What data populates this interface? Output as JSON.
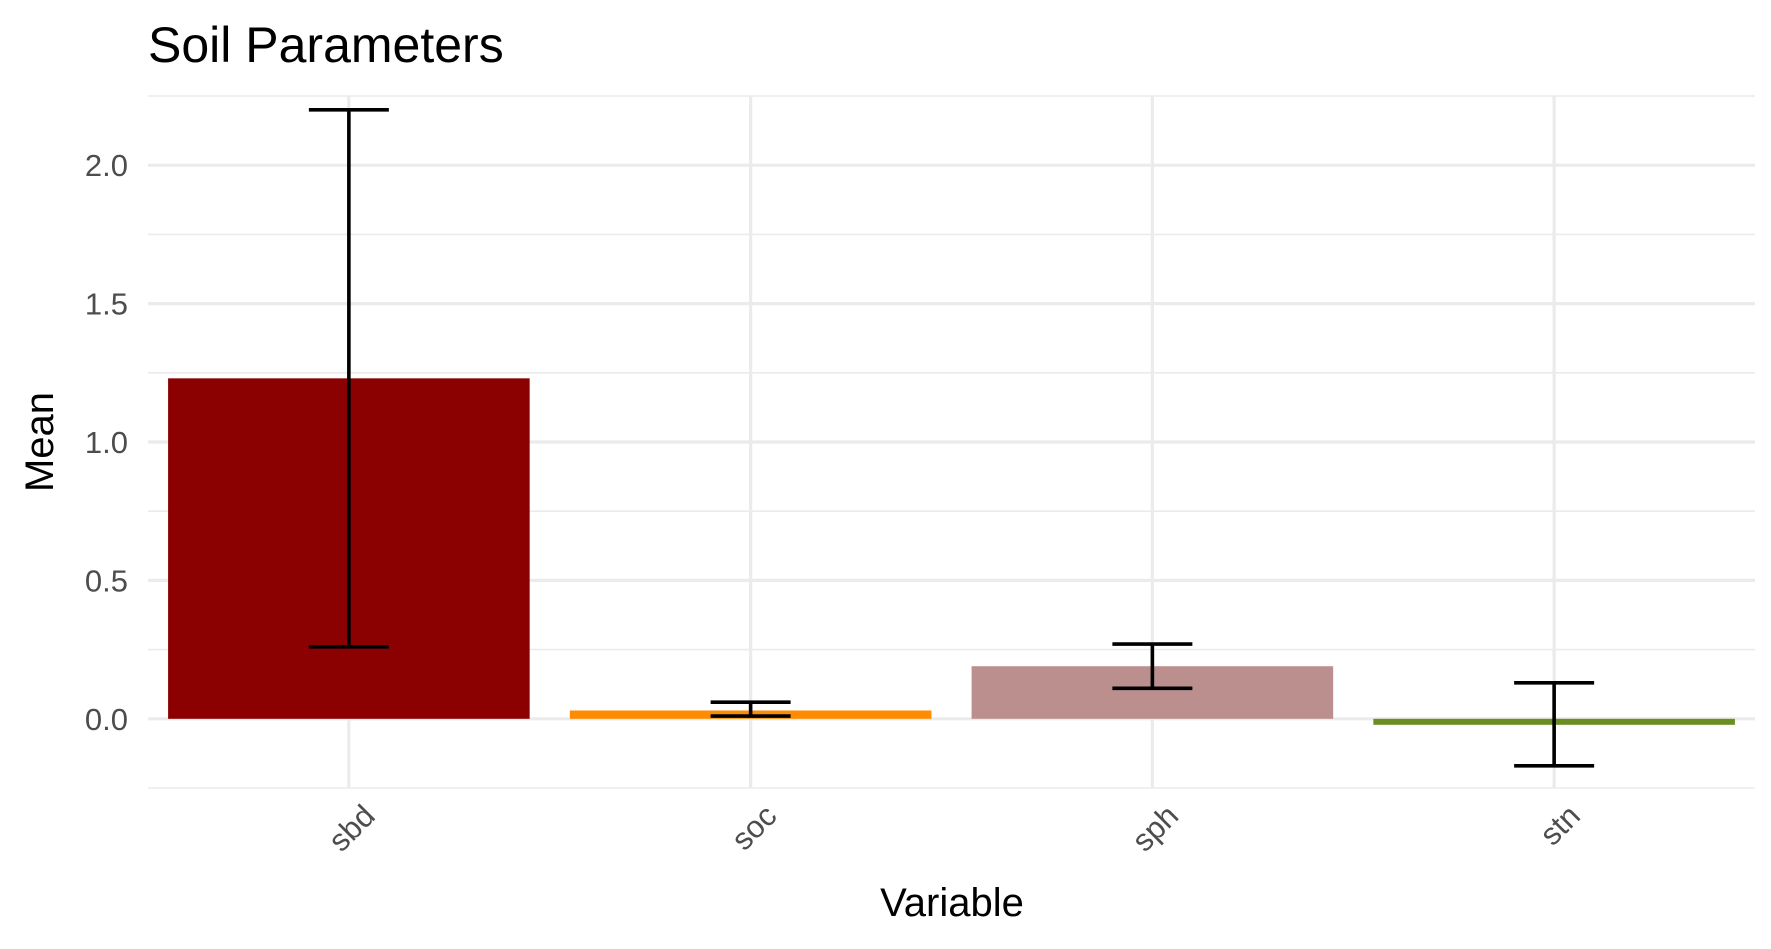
{
  "chart_data": {
    "type": "bar",
    "title": "Soil Parameters",
    "xlabel": "Variable",
    "ylabel": "Mean",
    "categories": [
      "sbd",
      "soc",
      "sph",
      "stn"
    ],
    "values": [
      1.23,
      0.03,
      0.19,
      -0.02
    ],
    "error_lower": [
      0.26,
      0.01,
      0.11,
      -0.17
    ],
    "error_upper": [
      2.2,
      0.06,
      0.27,
      0.13
    ],
    "colors": [
      "#8B0000",
      "#FF8C00",
      "#BC8F8F",
      "#6B8E23"
    ],
    "ylim": [
      -0.25,
      2.25
    ],
    "y_ticks": [
      0.0,
      0.5,
      1.0,
      1.5,
      2.0
    ],
    "y_tick_labels": [
      "0.0",
      "0.5",
      "1.0",
      "1.5",
      "2.0"
    ],
    "grid": true,
    "legend": "none",
    "x_tick_rotation": 45
  }
}
